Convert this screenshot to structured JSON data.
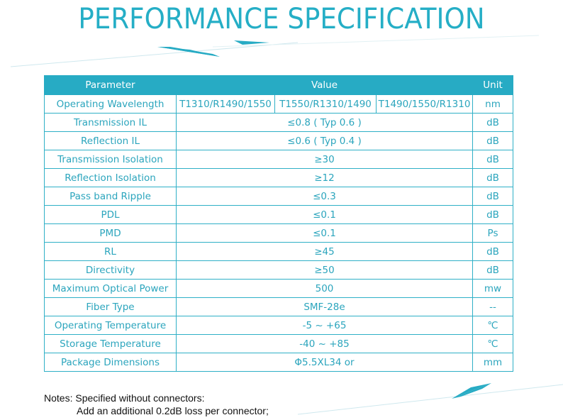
{
  "title": "PERFORMANCE SPECIFICATION",
  "colors": {
    "accent": "#27abc4",
    "text": "#2ba5bd"
  },
  "table": {
    "headers": [
      "Parameter",
      "Value",
      "Unit"
    ],
    "wavelength": {
      "label": "Operating Wavelength",
      "values": [
        "T1310/R1490/1550",
        "T1550/R1310/1490",
        "T1490/1550/R1310"
      ],
      "unit": "nm"
    },
    "rows": [
      {
        "parameter": "Transmission IL",
        "value": "≤0.8 ( Typ 0.6 )",
        "unit": "dB"
      },
      {
        "parameter": "Reflection IL",
        "value": "≤0.6 ( Typ 0.4 )",
        "unit": "dB"
      },
      {
        "parameter": "Transmission Isolation",
        "value": "≥30",
        "unit": "dB"
      },
      {
        "parameter": "Reflection Isolation",
        "value": "≥12",
        "unit": "dB"
      },
      {
        "parameter": "Pass band Ripple",
        "value": "≤0.3",
        "unit": "dB"
      },
      {
        "parameter": "PDL",
        "value": "≤0.1",
        "unit": "dB"
      },
      {
        "parameter": "PMD",
        "value": "≤0.1",
        "unit": "Ps"
      },
      {
        "parameter": "RL",
        "value": "≥45",
        "unit": "dB"
      },
      {
        "parameter": "Directivity",
        "value": "≥50",
        "unit": "dB"
      },
      {
        "parameter": "Maximum Optical Power",
        "value": "500",
        "unit": "mw"
      },
      {
        "parameter": "Fiber Type",
        "value": "SMF-28e",
        "unit": "--"
      },
      {
        "parameter": "Operating Temperature",
        "value": "-5 ~ +65",
        "unit": "℃"
      },
      {
        "parameter": "Storage Temperature",
        "value": "-40 ~ +85",
        "unit": "℃"
      },
      {
        "parameter": "Package Dimensions",
        "value": "Φ5.5XL34 or",
        "unit": "mm"
      }
    ]
  },
  "notes": {
    "line1": "Notes: Specified without connectors:",
    "line2": "Add an additional 0.2dB loss per connector;"
  }
}
